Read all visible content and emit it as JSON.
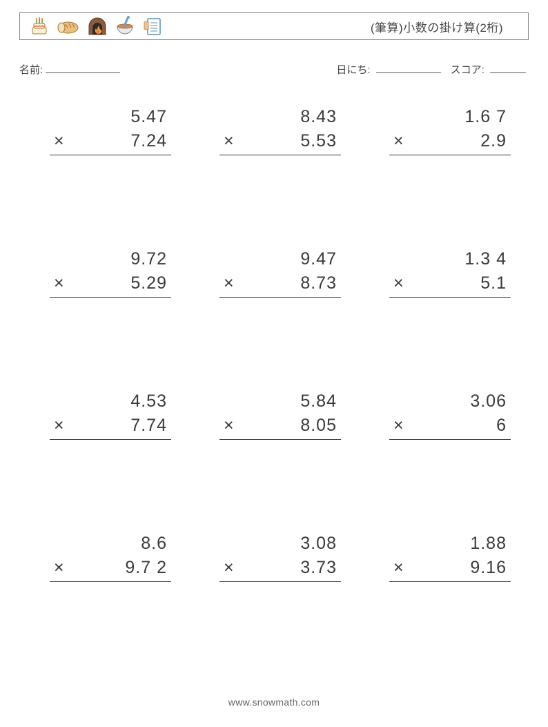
{
  "header": {
    "title": "(筆算)小数の掛け算(2桁)",
    "icons": [
      "cake-icon",
      "bread-icon",
      "fireplace-icon",
      "bowl-icon",
      "clipboard-icon"
    ]
  },
  "meta": {
    "name_label": "名前:",
    "date_label": "日にち:",
    "score_label": "スコア:"
  },
  "style": {
    "page_bg": "#ffffff",
    "border_color": "#888888",
    "text_color": "#3a3a3a",
    "rule_color": "#333333",
    "problem_fontsize": 25,
    "title_fontsize": 17,
    "meta_fontsize": 15,
    "icon_colors": {
      "cake": {
        "body": "#fff1d6",
        "accent": "#e76f51",
        "candle": "#7fb069"
      },
      "bread": {
        "body": "#e8c07d",
        "crust": "#a8763e"
      },
      "fireplace": {
        "body": "#8d5a3b",
        "flame": "#f4a836",
        "inner": "#e76f51"
      },
      "bowl": {
        "body": "#eaeaea",
        "spoon": "#6aa0c8",
        "rim": "#d08c60"
      },
      "clipboard": {
        "body": "#ffffff",
        "border": "#5b8fb9",
        "hand": "#f2c28b"
      }
    }
  },
  "problems": [
    {
      "a": "5.47",
      "b": "7.24"
    },
    {
      "a": "8.43",
      "b": "5.53"
    },
    {
      "a": "1.6 7",
      "b": "2.9"
    },
    {
      "a": "9.72",
      "b": "5.29"
    },
    {
      "a": "9.47",
      "b": "8.73"
    },
    {
      "a": "1.3 4",
      "b": "5.1"
    },
    {
      "a": "4.53",
      "b": "7.74"
    },
    {
      "a": "5.84",
      "b": "8.05"
    },
    {
      "a": "3.06",
      "b": "6"
    },
    {
      "a": "8.6",
      "b": "9.7 2"
    },
    {
      "a": "3.08",
      "b": "3.73"
    },
    {
      "a": "1.88",
      "b": "9.16"
    }
  ],
  "operator": "×",
  "footer": "www.snowmath.com"
}
